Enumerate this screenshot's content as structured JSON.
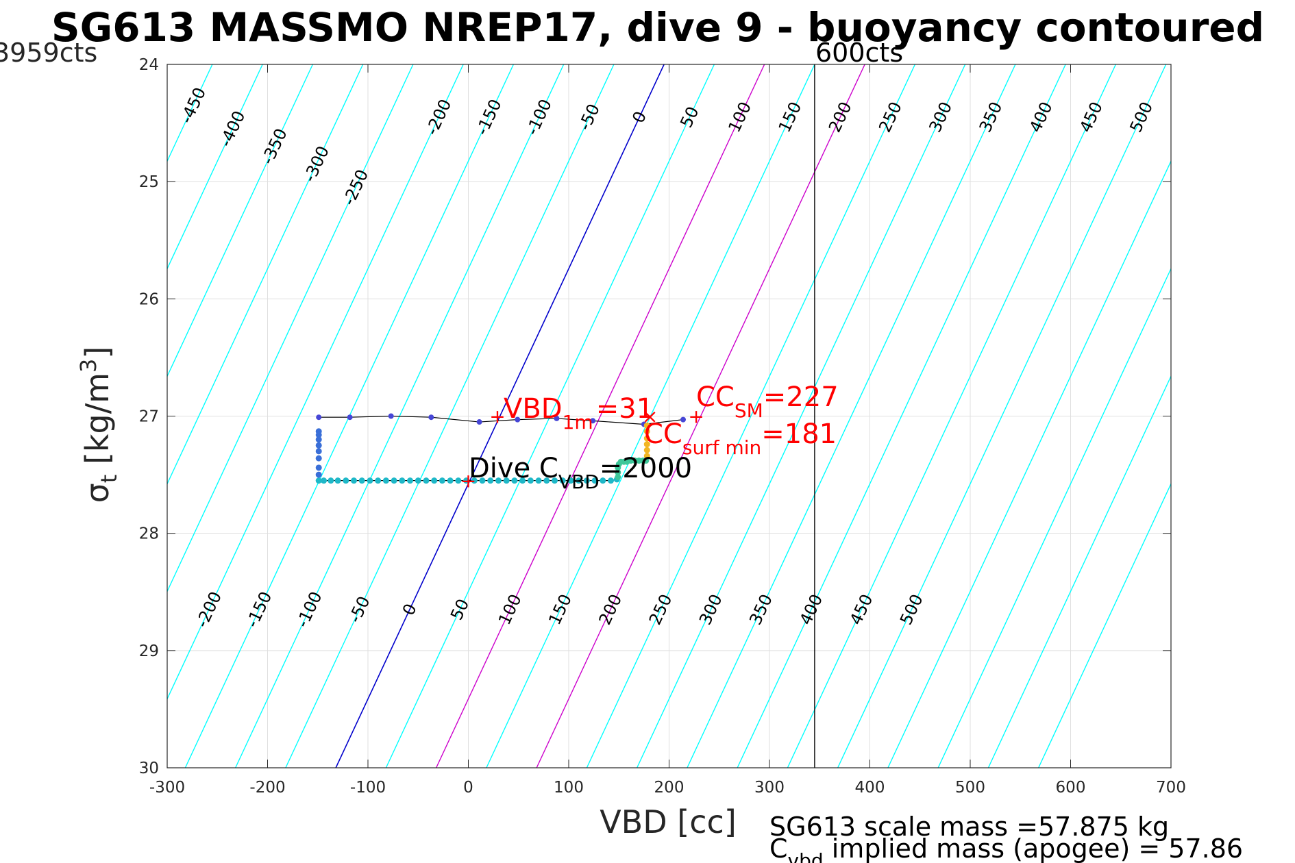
{
  "chart_data": {
    "type": "scatter",
    "title": "SG613 MASSMO NREP17, dive 9 - buoyancy contoured",
    "xlabel": "VBD [cc]",
    "ylabel_main": "σ",
    "ylabel_sub": "t",
    "ylabel_unit_pre": "[kg/m",
    "ylabel_unit_sup": "3",
    "ylabel_unit_post": "]",
    "xlim": [
      -300,
      700
    ],
    "ylim": [
      24,
      30
    ],
    "y_reversed": true,
    "grid": true,
    "xticks": [
      -300,
      -200,
      -100,
      0,
      100,
      200,
      300,
      400,
      500,
      600,
      700
    ],
    "xtick_labels": [
      "-300",
      "-200",
      "-100",
      "0",
      "100",
      "200",
      "300",
      "400",
      "500",
      "600",
      "700"
    ],
    "yticks": [
      24,
      25,
      26,
      27,
      28,
      29,
      30
    ],
    "ytick_labels": [
      "24",
      "25",
      "26",
      "27",
      "28",
      "29",
      "30"
    ],
    "limit_labels": {
      "left": "3959cts",
      "right": "600cts"
    },
    "limit_line_x": 345,
    "contours": {
      "offset_top_labels": [
        -450,
        -400,
        -350,
        -300,
        -250,
        -200,
        -150,
        -100,
        -50,
        0,
        50,
        100,
        150,
        200,
        250,
        300,
        350,
        400,
        450,
        500
      ],
      "offset_bottom_labels": [
        -200,
        -150,
        -100,
        -50,
        0,
        50,
        100,
        150,
        200,
        250,
        300,
        350,
        400,
        450,
        500
      ],
      "top_label_texts": [
        "-450",
        "-400",
        "-350",
        "-300",
        "-250",
        "-200",
        "-150",
        "-100",
        "-50",
        "0",
        "50",
        "100",
        "150",
        "200",
        "250",
        "300",
        "350",
        "400",
        "450",
        "500"
      ],
      "bottom_label_texts": [
        "-200",
        "-150",
        "-100",
        "-50",
        "0",
        "50",
        "100",
        "150",
        "200",
        "250",
        "300",
        "350",
        "400",
        "450",
        "500"
      ],
      "zero_x_at_sigma24": 195,
      "zero_x_at_sigma30": -132,
      "slope_cc_per_sigma": -54.5,
      "highlight_offsets": [
        100,
        200
      ],
      "colors": {
        "contour": "#00ffff",
        "zero": "#0000cc",
        "highlight": "#cc00cc",
        "limit": "#000000"
      }
    },
    "series": [
      {
        "kind": "climb",
        "color": "#4646d6",
        "x": [
          -149,
          -118,
          -77,
          -37,
          11,
          49,
          88,
          124,
          175,
          214
        ],
        "y": [
          27.01,
          27.01,
          27.0,
          27.01,
          27.05,
          27.03,
          27.02,
          27.04,
          27.07,
          27.03
        ]
      },
      {
        "kind": "dive-bottom",
        "color": "#1fb8c8",
        "x": [
          -149,
          -144,
          -137,
          -130,
          -122,
          -114,
          -106,
          -98,
          -90,
          -82,
          -74,
          -66,
          -58,
          -50,
          -42,
          -34,
          -26,
          -18,
          -10,
          -2,
          6,
          14,
          22,
          30,
          38,
          46,
          54,
          62,
          70,
          78,
          86,
          94,
          102,
          110,
          118,
          126,
          134,
          142,
          148
        ],
        "y": [
          27.55,
          27.55,
          27.55,
          27.55,
          27.55,
          27.55,
          27.55,
          27.55,
          27.55,
          27.55,
          27.55,
          27.55,
          27.55,
          27.55,
          27.55,
          27.55,
          27.55,
          27.55,
          27.55,
          27.55,
          27.55,
          27.55,
          27.55,
          27.55,
          27.55,
          27.55,
          27.55,
          27.55,
          27.55,
          27.55,
          27.55,
          27.55,
          27.55,
          27.55,
          27.55,
          27.55,
          27.55,
          27.55,
          27.54
        ]
      },
      {
        "kind": "left-edge",
        "color": "#3a6fd8",
        "x": [
          -149,
          -149,
          -149,
          -149,
          -149,
          -149,
          -149,
          -149
        ],
        "y": [
          27.13,
          27.16,
          27.2,
          27.25,
          27.3,
          27.36,
          27.44,
          27.5
        ]
      },
      {
        "kind": "right-edge",
        "color": "#3ec79a",
        "x": [
          149,
          149,
          149,
          150,
          152,
          155,
          158,
          162,
          166,
          170,
          174,
          177
        ],
        "y": [
          27.52,
          27.48,
          27.44,
          27.41,
          27.39,
          27.39,
          27.39,
          27.38,
          27.38,
          27.38,
          27.38,
          27.38
        ]
      },
      {
        "kind": "surface",
        "color": "#f2b624",
        "x": [
          178,
          178,
          178,
          178,
          178,
          178
        ],
        "y": [
          27.08,
          27.13,
          27.19,
          27.24,
          27.29,
          27.34
        ]
      }
    ],
    "markers": [
      {
        "text": "+",
        "x": 0,
        "y": 27.55,
        "color": "#ff0000"
      },
      {
        "text": "+",
        "x": 29,
        "y": 27.0,
        "color": "#ff0000"
      },
      {
        "text": "+",
        "x": 227,
        "y": 27.0,
        "color": "#ff0000"
      },
      {
        "text": "×",
        "x": 181,
        "y": 27.0,
        "color": "#ff0000"
      }
    ],
    "annotations": {
      "vbd1m_main": "VBD",
      "vbd1m_sub": "1m",
      "vbd1m_value": "=31",
      "ccsm_main": "CC",
      "ccsm_sub": "SM",
      "ccsm_value": "=227",
      "ccsurf_main": "CC",
      "ccsurf_sub": "surf min",
      "ccsurf_value": "=181",
      "divec_main": "Dive C",
      "divec_sub": "VBD",
      "divec_value": "=2000"
    },
    "footnotes": {
      "line1": "SG613 scale mass =57.875 kg",
      "line2_main": "C",
      "line2_sub": "vbd",
      "line2_rest": " implied mass (apogee) = 57.86"
    }
  }
}
